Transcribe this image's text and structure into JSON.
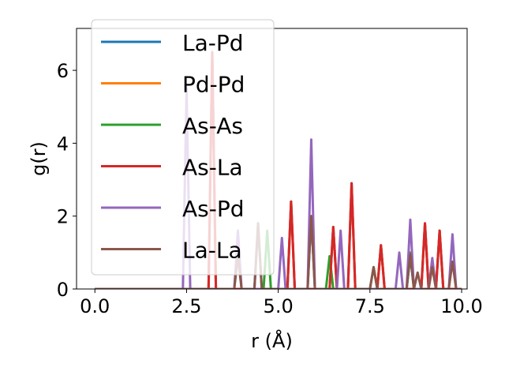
{
  "chart_data": {
    "type": "line",
    "title": "",
    "xlabel": "r (Å)",
    "ylabel": "g(r)",
    "xlim": [
      -0.5,
      10.15
    ],
    "ylim": [
      0,
      7.15
    ],
    "xticks": [
      {
        "value": 0.0,
        "label": "0.0"
      },
      {
        "value": 2.5,
        "label": "2.5"
      },
      {
        "value": 5.0,
        "label": "5.0"
      },
      {
        "value": 7.5,
        "label": "7.5"
      },
      {
        "value": 10.0,
        "label": "10.0"
      }
    ],
    "yticks": [
      {
        "value": 0,
        "label": "0"
      },
      {
        "value": 2,
        "label": "2"
      },
      {
        "value": 4,
        "label": "4"
      },
      {
        "value": 6,
        "label": "6"
      }
    ],
    "grid": false,
    "legend_position": "upper-left",
    "line_width": 3,
    "series": [
      {
        "name": "La-Pd",
        "color": "#1f77b4",
        "peaks": [
          {
            "x": 3.2,
            "y": 6.5
          },
          {
            "x": 4.45,
            "y": 1.8
          },
          {
            "x": 5.35,
            "y": 2.4
          },
          {
            "x": 5.9,
            "y": 2.0
          },
          {
            "x": 6.5,
            "y": 1.7
          },
          {
            "x": 7.0,
            "y": 2.9
          },
          {
            "x": 7.8,
            "y": 1.2
          },
          {
            "x": 8.6,
            "y": 0.9
          },
          {
            "x": 9.0,
            "y": 1.8
          },
          {
            "x": 9.4,
            "y": 1.6
          }
        ]
      },
      {
        "name": "Pd-Pd",
        "color": "#ff7f0e",
        "peaks": [
          {
            "x": 3.2,
            "y": 6.5
          },
          {
            "x": 5.35,
            "y": 2.4
          },
          {
            "x": 6.5,
            "y": 1.7
          },
          {
            "x": 7.0,
            "y": 2.9
          },
          {
            "x": 7.8,
            "y": 1.2
          },
          {
            "x": 9.0,
            "y": 1.8
          },
          {
            "x": 9.4,
            "y": 1.6
          }
        ]
      },
      {
        "name": "As-As",
        "color": "#2ca02c",
        "peaks": [
          {
            "x": 4.7,
            "y": 1.6
          },
          {
            "x": 6.4,
            "y": 0.9
          },
          {
            "x": 7.6,
            "y": 0.6
          },
          {
            "x": 8.6,
            "y": 1.0
          }
        ]
      },
      {
        "name": "As-La",
        "color": "#d62728",
        "peaks": [
          {
            "x": 3.2,
            "y": 6.5
          },
          {
            "x": 5.35,
            "y": 2.4
          },
          {
            "x": 6.5,
            "y": 1.7
          },
          {
            "x": 7.0,
            "y": 2.9
          },
          {
            "x": 7.8,
            "y": 1.2
          },
          {
            "x": 9.0,
            "y": 1.8
          },
          {
            "x": 9.4,
            "y": 1.6
          }
        ]
      },
      {
        "name": "As-Pd",
        "color": "#9467bd",
        "peaks": [
          {
            "x": 2.5,
            "y": 5.5
          },
          {
            "x": 3.9,
            "y": 1.6
          },
          {
            "x": 5.1,
            "y": 1.4
          },
          {
            "x": 5.9,
            "y": 4.1
          },
          {
            "x": 6.7,
            "y": 1.6
          },
          {
            "x": 8.3,
            "y": 1.0
          },
          {
            "x": 8.6,
            "y": 1.9
          },
          {
            "x": 9.2,
            "y": 0.85
          },
          {
            "x": 9.75,
            "y": 1.5
          }
        ]
      },
      {
        "name": "La-La",
        "color": "#8c564b",
        "peaks": [
          {
            "x": 3.9,
            "y": 0.9
          },
          {
            "x": 4.45,
            "y": 1.8
          },
          {
            "x": 5.9,
            "y": 2.0
          },
          {
            "x": 7.6,
            "y": 0.6
          },
          {
            "x": 8.6,
            "y": 0.95
          },
          {
            "x": 8.8,
            "y": 0.45
          },
          {
            "x": 9.2,
            "y": 0.6
          },
          {
            "x": 9.75,
            "y": 0.75
          }
        ]
      }
    ]
  }
}
